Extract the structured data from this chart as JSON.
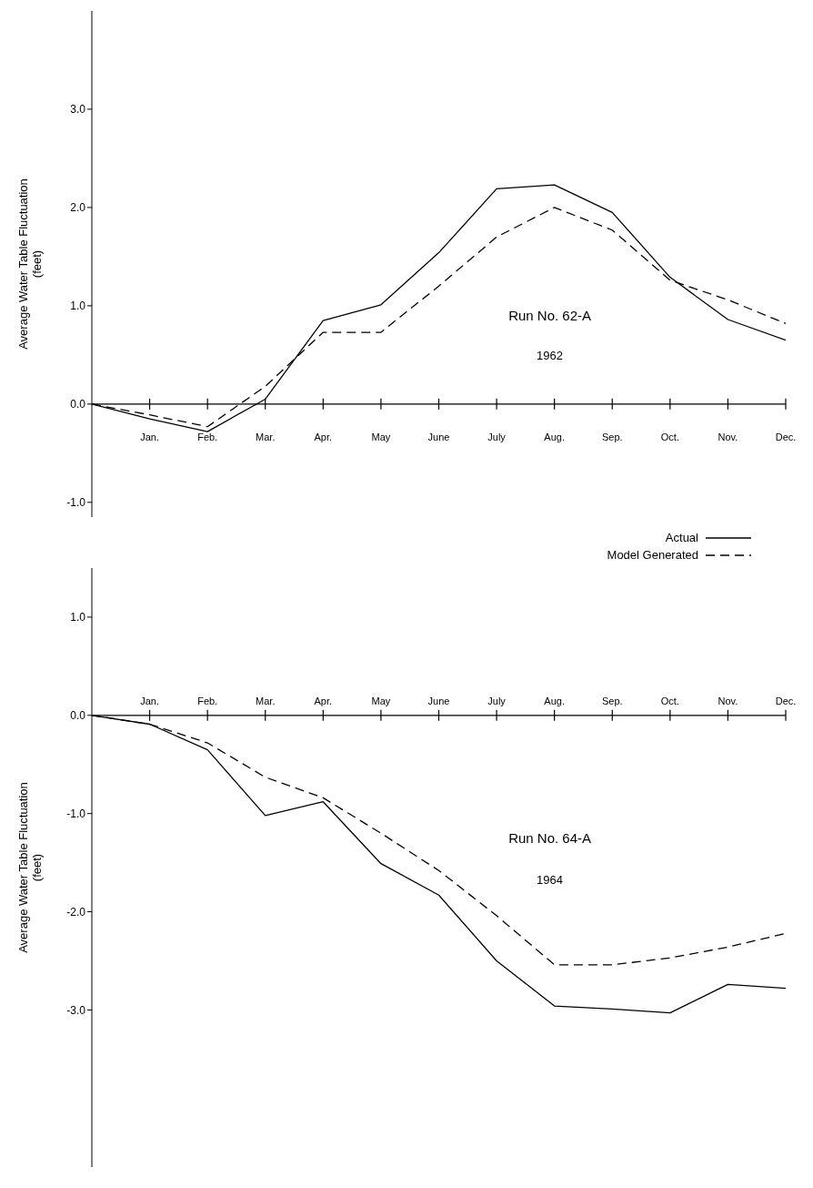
{
  "chart_data": [
    {
      "type": "line",
      "ylabel": "Average Water Table Fluctuation\n(feet)",
      "categories": [
        null,
        "Jan.",
        "Feb.",
        "Mar.",
        "Apr.",
        "May",
        "June",
        "July",
        "Aug.",
        "Sep.",
        "Oct.",
        "Nov.",
        "Dec."
      ],
      "ylim": [
        -1.15,
        4.0
      ],
      "yticks": [
        {
          "value": -1,
          "label": "-1.0"
        },
        {
          "value": 0,
          "label": "0.0"
        },
        {
          "value": 1,
          "label": "1.0"
        },
        {
          "value": 2,
          "label": "2.0"
        },
        {
          "value": 3,
          "label": "3.0"
        }
      ],
      "marker": "none",
      "legend": "bottom right",
      "annotations": [
        "Run No. 62-A",
        "1962"
      ],
      "series": [
        {
          "name": "Actual",
          "color": "#000000",
          "line_style": "solid",
          "values": [
            0,
            -0.15,
            -0.28,
            0.05,
            0.85,
            1.01,
            1.54,
            2.19,
            2.23,
            1.95,
            1.29,
            0.86,
            0.65
          ]
        },
        {
          "name": "Model Generated",
          "color": "#000000",
          "line_style": "dashed",
          "values": [
            0,
            -0.11,
            -0.23,
            0.18,
            0.73,
            0.73,
            1.2,
            1.7,
            2.0,
            1.77,
            1.26,
            1.06,
            0.82
          ]
        }
      ]
    },
    {
      "type": "line",
      "ylabel": "Average Water Table Fluctuation\n(feet)",
      "categories": [
        null,
        "Jan.",
        "Feb.",
        "Mar.",
        "Apr.",
        "May",
        "June",
        "July",
        "Aug.",
        "Sep.",
        "Oct.",
        "Nov.",
        "Dec."
      ],
      "ylim": [
        -4.6,
        1.5
      ],
      "yticks": [
        {
          "value": -3,
          "label": "-3.0"
        },
        {
          "value": -2,
          "label": "-2.0"
        },
        {
          "value": -1,
          "label": "-1.0"
        },
        {
          "value": 0,
          "label": "0.0"
        },
        {
          "value": 1,
          "label": "1.0"
        }
      ],
      "marker": "none",
      "annotations": [
        "Run No. 64-A",
        "1964"
      ],
      "series": [
        {
          "color": "#000000",
          "line_style": "solid",
          "values": [
            0,
            -0.09,
            -0.35,
            -1.02,
            -0.88,
            -1.51,
            -1.83,
            -2.5,
            -2.96,
            -2.99,
            -3.03,
            -2.74,
            -2.78
          ]
        },
        {
          "color": "#000000",
          "line_style": "dashed",
          "values": [
            0,
            -0.09,
            -0.28,
            -0.63,
            -0.84,
            -1.2,
            -1.58,
            -2.04,
            -2.54,
            -2.54,
            -2.47,
            -2.36,
            -2.22
          ]
        }
      ]
    }
  ]
}
